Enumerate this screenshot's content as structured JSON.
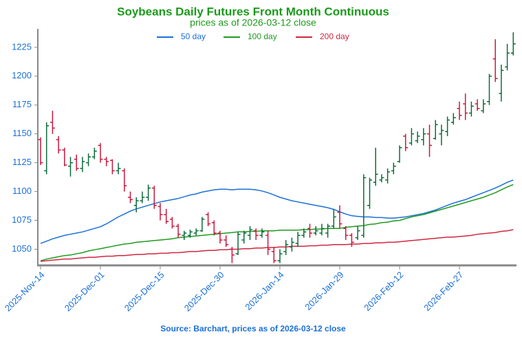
{
  "chart_data": {
    "type": "ohlc",
    "title": "Soybeans Daily Futures Front Month Continuous",
    "subtitle": "prices as of 2026-03-12 close",
    "source": "Source: Barchart, prices as of 2026-03-12 close",
    "categories": [
      "2025-Nov-14",
      null,
      null,
      null,
      null,
      null,
      null,
      null,
      null,
      null,
      "2025-Dec-01",
      null,
      null,
      null,
      null,
      null,
      null,
      null,
      null,
      null,
      "2025-Dec-15",
      null,
      null,
      null,
      null,
      null,
      null,
      null,
      null,
      null,
      "2025-Dec-30",
      null,
      null,
      null,
      null,
      null,
      null,
      null,
      null,
      null,
      "2026-Jan-14",
      null,
      null,
      null,
      null,
      null,
      null,
      null,
      null,
      null,
      "2026-Jan-29",
      null,
      null,
      null,
      null,
      null,
      null,
      null,
      null,
      null,
      "2026-Feb-12",
      null,
      null,
      null,
      null,
      null,
      null,
      null,
      null,
      null,
      "2026-Feb-27",
      null,
      null,
      null,
      null,
      null,
      null,
      null,
      null,
      null
    ],
    "open": [
      1145,
      1118,
      1160,
      1145,
      1136,
      1122,
      1128,
      1120,
      1125,
      1130,
      1140,
      1128,
      1127,
      1118,
      1118,
      1095,
      1088,
      1092,
      1095,
      1103,
      1087,
      1080,
      1076,
      1070,
      1062,
      1062,
      1064,
      1066,
      1080,
      1073,
      1064,
      1058,
      1050,
      1046,
      1058,
      1062,
      1066,
      1062,
      1062,
      1048,
      1040,
      1048,
      1052,
      1055,
      1062,
      1068,
      1064,
      1064,
      1064,
      1070,
      1082,
      1068,
      1062,
      1060,
      1062,
      1088,
      1108,
      1110,
      1110,
      1118,
      1126,
      1148,
      1142,
      1144,
      1145,
      1150,
      1146,
      1150,
      1152,
      1160,
      1172,
      1176,
      1168,
      1176,
      1170,
      1178,
      1215,
      1185,
      1208,
      1220
    ],
    "high": [
      1147,
      1160,
      1170,
      1148,
      1138,
      1130,
      1132,
      1130,
      1133,
      1138,
      1142,
      1130,
      1128,
      1125,
      1120,
      1100,
      1095,
      1100,
      1106,
      1105,
      1090,
      1085,
      1078,
      1072,
      1066,
      1067,
      1068,
      1078,
      1082,
      1075,
      1066,
      1062,
      1052,
      1065,
      1066,
      1070,
      1068,
      1068,
      1066,
      1052,
      1050,
      1058,
      1060,
      1065,
      1068,
      1072,
      1070,
      1072,
      1072,
      1085,
      1088,
      1070,
      1064,
      1070,
      1115,
      1112,
      1138,
      1115,
      1120,
      1125,
      1140,
      1150,
      1155,
      1152,
      1155,
      1158,
      1162,
      1158,
      1165,
      1168,
      1178,
      1185,
      1178,
      1180,
      1180,
      1202,
      1232,
      1210,
      1228,
      1238
    ],
    "low": [
      1123,
      1115,
      1150,
      1133,
      1122,
      1113,
      1118,
      1117,
      1122,
      1128,
      1125,
      1122,
      1115,
      1115,
      1100,
      1090,
      1082,
      1090,
      1092,
      1085,
      1075,
      1072,
      1068,
      1060,
      1058,
      1060,
      1062,
      1065,
      1070,
      1062,
      1055,
      1052,
      1038,
      1045,
      1055,
      1058,
      1058,
      1060,
      1045,
      1038,
      1038,
      1045,
      1048,
      1052,
      1060,
      1060,
      1062,
      1062,
      1060,
      1068,
      1068,
      1058,
      1052,
      1058,
      1060,
      1085,
      1105,
      1108,
      1107,
      1115,
      1125,
      1135,
      1140,
      1142,
      1140,
      1130,
      1145,
      1140,
      1148,
      1158,
      1162,
      1162,
      1165,
      1170,
      1168,
      1175,
      1195,
      1178,
      1205,
      1218
    ],
    "close": [
      1125,
      1157,
      1155,
      1136,
      1123,
      1125,
      1120,
      1126,
      1130,
      1135,
      1128,
      1126,
      1118,
      1120,
      1105,
      1093,
      1092,
      1095,
      1103,
      1088,
      1080,
      1074,
      1070,
      1063,
      1064,
      1065,
      1066,
      1076,
      1072,
      1064,
      1058,
      1054,
      1045,
      1063,
      1064,
      1067,
      1062,
      1065,
      1050,
      1040,
      1046,
      1054,
      1056,
      1062,
      1065,
      1064,
      1066,
      1068,
      1070,
      1078,
      1072,
      1062,
      1056,
      1066,
      1112,
      1110,
      1115,
      1112,
      1117,
      1122,
      1138,
      1138,
      1150,
      1148,
      1150,
      1140,
      1158,
      1153,
      1162,
      1164,
      1166,
      1168,
      1174,
      1172,
      1176,
      1200,
      1198,
      1205,
      1220,
      1228
    ],
    "up_color": "#0b6b3a",
    "down_color": "#c8173c",
    "series": [
      {
        "name": "50 day",
        "color": "#1a6fd8",
        "values": [
          1055,
          1057,
          1059,
          1060.5,
          1062,
          1063,
          1064,
          1065,
          1066.5,
          1068,
          1069.5,
          1072,
          1075,
          1078,
          1080.5,
          1083,
          1085,
          1086.5,
          1088,
          1089.5,
          1091,
          1092,
          1093,
          1094,
          1095.5,
          1097,
          1098,
          1099.5,
          1100.5,
          1101.5,
          1102,
          1102,
          1101.5,
          1102,
          1102,
          1102,
          1101.5,
          1100.5,
          1099,
          1097,
          1095,
          1093.5,
          1092,
          1091,
          1090,
          1089,
          1088,
          1087,
          1086,
          1084.5,
          1082.5,
          1080.5,
          1079,
          1078.5,
          1078,
          1078,
          1077.5,
          1077.5,
          1077,
          1077,
          1077.5,
          1078,
          1079,
          1080,
          1081,
          1082.5,
          1084,
          1086,
          1088,
          1090,
          1091.5,
          1093,
          1095,
          1097,
          1099,
          1101,
          1103,
          1105.5,
          1108,
          1110
        ]
      },
      {
        "name": "100 day",
        "color": "#1e9a1e",
        "values": [
          1040,
          1041.5,
          1042.5,
          1043.5,
          1044.5,
          1045,
          1046,
          1047,
          1048.5,
          1049.5,
          1050.5,
          1051.5,
          1052.5,
          1053.5,
          1054.5,
          1055,
          1056,
          1056.5,
          1057,
          1057.5,
          1058,
          1058.5,
          1059,
          1060,
          1060.5,
          1061,
          1061.5,
          1062,
          1062.5,
          1063,
          1063.5,
          1064,
          1064.5,
          1065,
          1065,
          1065.5,
          1065.5,
          1066,
          1066,
          1066,
          1066.5,
          1066.5,
          1066.5,
          1066.5,
          1067,
          1067,
          1067.5,
          1067.5,
          1068,
          1068,
          1068,
          1069,
          1069.5,
          1070,
          1070.5,
          1071.5,
          1072,
          1073,
          1073.5,
          1074.5,
          1075,
          1076.5,
          1078,
          1079,
          1080,
          1081.5,
          1083,
          1084.5,
          1086,
          1087.5,
          1089,
          1090.5,
          1092,
          1093.5,
          1095,
          1097,
          1099,
          1101.5,
          1104,
          1106
        ]
      },
      {
        "name": "200 day",
        "color": "#d0263e",
        "values": [
          1039.5,
          1040,
          1040.5,
          1041,
          1041.5,
          1041.5,
          1042,
          1042.5,
          1043,
          1043,
          1043.5,
          1044,
          1044,
          1044.5,
          1044.5,
          1045,
          1045.5,
          1045.5,
          1046,
          1046,
          1046.5,
          1046.5,
          1047,
          1047,
          1047.5,
          1048,
          1048,
          1048.5,
          1049,
          1049,
          1049.5,
          1049.5,
          1050,
          1050,
          1050.5,
          1050.5,
          1051,
          1051,
          1051.5,
          1051.5,
          1052,
          1052,
          1052.5,
          1052.5,
          1052.5,
          1053,
          1053,
          1053.5,
          1053.5,
          1054,
          1054,
          1054,
          1054.5,
          1054.5,
          1055,
          1055,
          1055.5,
          1055.5,
          1056,
          1056,
          1056.5,
          1057,
          1057.5,
          1058,
          1058.5,
          1059,
          1059.5,
          1060,
          1060.5,
          1060.5,
          1061,
          1061.5,
          1062,
          1063,
          1063.5,
          1064,
          1064.5,
          1065.5,
          1066,
          1067
        ]
      }
    ],
    "ylim": [
      1036,
      1241
    ],
    "yticks": [
      1050,
      1075,
      1100,
      1125,
      1150,
      1175,
      1200,
      1225
    ],
    "legend": "top"
  }
}
